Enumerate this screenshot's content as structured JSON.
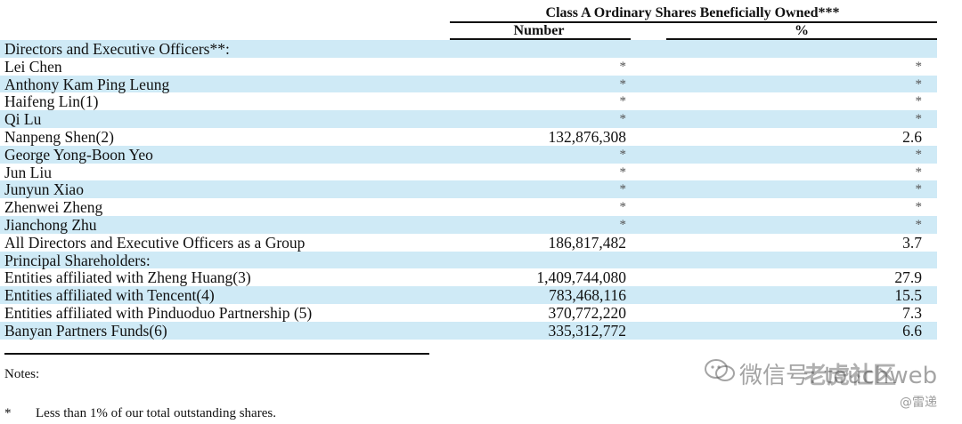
{
  "header": {
    "title": "Class A Ordinary Shares Beneficially Owned***",
    "col_number": "Number",
    "col_percent": "%"
  },
  "rows": [
    {
      "name": "Directors and Executive Officers**:",
      "number": "",
      "percent": "",
      "shaded": true
    },
    {
      "name": "Lei Chen",
      "number": "*",
      "percent": "*",
      "shaded": false
    },
    {
      "name": "Anthony Kam Ping Leung",
      "number": "*",
      "percent": "*",
      "shaded": true
    },
    {
      "name": "Haifeng Lin(1)",
      "number": "*",
      "percent": "*",
      "shaded": false
    },
    {
      "name": "Qi Lu",
      "number": "*",
      "percent": "*",
      "shaded": true
    },
    {
      "name": "Nanpeng Shen(2)",
      "number": "132,876,308",
      "percent": "2.6",
      "shaded": false
    },
    {
      "name": "George Yong-Boon Yeo",
      "number": "*",
      "percent": "*",
      "shaded": true
    },
    {
      "name": "Jun Liu",
      "number": "*",
      "percent": "*",
      "shaded": false
    },
    {
      "name": "Junyun Xiao",
      "number": "*",
      "percent": "*",
      "shaded": true
    },
    {
      "name": "Zhenwei Zheng",
      "number": "*",
      "percent": "*",
      "shaded": false
    },
    {
      "name": "Jianchong Zhu",
      "number": "*",
      "percent": "*",
      "shaded": true
    },
    {
      "name": "All Directors and Executive Officers as a Group",
      "number": "186,817,482",
      "percent": "3.7",
      "shaded": false
    },
    {
      "name": "Principal Shareholders:",
      "number": "",
      "percent": "",
      "shaded": true
    },
    {
      "name": "Entities affiliated with Zheng Huang(3)",
      "number": "1,409,744,080",
      "percent": "27.9",
      "shaded": false
    },
    {
      "name": "Entities affiliated with Tencent(4)",
      "number": "783,468,116",
      "percent": "15.5",
      "shaded": true
    },
    {
      "name": "Entities affiliated with Pinduoduo Partnership (5)",
      "number": "370,772,220",
      "percent": "7.3",
      "shaded": false
    },
    {
      "name": "Banyan Partners Funds(6)",
      "number": "335,312,772",
      "percent": "6.6",
      "shaded": true
    }
  ],
  "notes": {
    "label": "Notes:",
    "footnote_mark": "*",
    "footnote_text": "Less than 1% of our total outstanding shares."
  },
  "watermark": {
    "text": "微信号: touchweb",
    "brand": "老虎社区",
    "sub": "@雷递",
    "icon": "wechat-icon"
  }
}
